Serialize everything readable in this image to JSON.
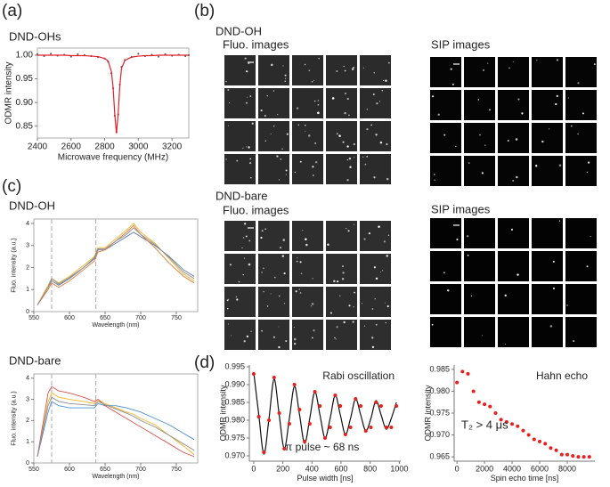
{
  "panel_labels": [
    "(a)",
    "(b)",
    "(c)",
    "(d)"
  ],
  "images": {
    "oh_title": "DND-OH",
    "oh_fluo": "Fluo. images",
    "oh_sip": "SIP images",
    "bare_title": "DND-bare",
    "bare_fluo": "Fluo. images",
    "bare_sip": "SIP images"
  },
  "chart_data": [
    {
      "type": "scatter",
      "title": "DND-OHs",
      "x_label": "Microwave frequency (MHz)",
      "y_label": "ODMR intensity",
      "x": [
        2400,
        2440,
        2480,
        2520,
        2560,
        2600,
        2640,
        2680,
        2720,
        2760,
        2800,
        2820,
        2840,
        2850,
        2860,
        2870,
        2880,
        2890,
        2900,
        2920,
        2960,
        3000,
        3040,
        3080,
        3120,
        3160,
        3200,
        3240,
        3280,
        3300
      ],
      "series": [
        {
          "mode": "markers",
          "color": "#666666",
          "values": [
            1.002,
            0.998,
            1.003,
            0.999,
            1.001,
            0.997,
            1.002,
            1.0,
            0.998,
            0.996,
            0.993,
            0.986,
            0.962,
            0.93,
            0.872,
            0.838,
            0.875,
            0.938,
            0.975,
            0.99,
            0.996,
            1.003,
            0.998,
            1.001,
            0.997,
            1.002,
            0.999,
            1.001,
            0.998,
            1.0
          ]
        },
        {
          "mode": "lines",
          "color": "#e0202a",
          "values": [
            1.0,
            1.0,
            1.0,
            1.0,
            1.0,
            0.999,
            0.999,
            0.999,
            0.998,
            0.997,
            0.993,
            0.988,
            0.965,
            0.932,
            0.875,
            0.835,
            0.876,
            0.935,
            0.972,
            0.989,
            0.996,
            0.998,
            0.999,
            0.999,
            1.0,
            1.0,
            1.0,
            1.0,
            1.0,
            1.0
          ]
        }
      ],
      "xlim": [
        2400,
        3300
      ],
      "xticks": [
        2400,
        2600,
        2800,
        3000,
        3200
      ],
      "ylim": [
        0.825,
        1.015
      ],
      "yticks": [
        0.85,
        {
          "value": 0.9,
          "label": "0.90"
        },
        0.95,
        {
          "value": 1.0,
          "label": "1.00"
        }
      ]
    },
    {
      "type": "line",
      "title": "DND-OH",
      "x_label": "Wavelength (nm)",
      "y_label": "Fluo. intensity (a.u.)",
      "x": [
        555,
        570,
        575,
        585,
        600,
        620,
        635,
        640,
        650,
        665,
        680,
        690,
        700,
        720,
        740,
        760,
        775
      ],
      "series": [
        {
          "mode": "lines",
          "color": "#f0b429",
          "values": [
            0.3,
            1.2,
            1.5,
            1.3,
            1.6,
            2.1,
            2.5,
            2.9,
            2.9,
            3.3,
            3.7,
            4.0,
            3.6,
            3.1,
            2.4,
            1.7,
            1.4
          ]
        },
        {
          "mode": "lines",
          "color": "#5b7aa8",
          "values": [
            0.3,
            1.1,
            1.4,
            1.2,
            1.5,
            2.0,
            2.4,
            2.8,
            2.8,
            3.1,
            3.4,
            3.6,
            3.4,
            3.0,
            2.5,
            1.9,
            1.6
          ]
        },
        {
          "mode": "lines",
          "color": "#e07b39",
          "values": [
            0.3,
            1.0,
            1.3,
            1.1,
            1.4,
            1.9,
            2.3,
            2.7,
            2.8,
            3.2,
            3.6,
            3.9,
            3.5,
            2.9,
            2.2,
            1.6,
            1.3
          ]
        },
        {
          "mode": "lines",
          "color": "#8c8c8c",
          "values": [
            0.3,
            1.1,
            1.5,
            1.25,
            1.55,
            2.0,
            2.45,
            2.85,
            2.85,
            3.2,
            3.5,
            3.8,
            3.5,
            3.05,
            2.45,
            1.8,
            1.5
          ]
        }
      ],
      "vlines": [
        575,
        637
      ],
      "xlim": [
        550,
        780
      ],
      "xticks": [
        550,
        600,
        650,
        700,
        750
      ],
      "ylim": [
        0,
        4.2
      ],
      "yticks": [
        0,
        1,
        2,
        3,
        4
      ]
    },
    {
      "type": "line",
      "title": "DND-bare",
      "x_label": "Wavelength (nm)",
      "y_label": "Fluo. intensity (a.u.)",
      "x": [
        555,
        570,
        575,
        585,
        600,
        620,
        635,
        640,
        650,
        665,
        680,
        690,
        700,
        720,
        740,
        760,
        775
      ],
      "series": [
        {
          "mode": "lines",
          "color": "#f0b429",
          "values": [
            0.3,
            2.9,
            3.3,
            3.1,
            3.0,
            2.9,
            2.8,
            3.0,
            2.8,
            2.6,
            2.4,
            2.3,
            2.1,
            1.8,
            1.3,
            0.8,
            0.4
          ]
        },
        {
          "mode": "lines",
          "color": "#4a8fd0",
          "values": [
            0.3,
            2.4,
            2.9,
            2.7,
            2.6,
            2.6,
            2.6,
            2.8,
            2.7,
            2.7,
            2.6,
            2.5,
            2.4,
            2.1,
            1.8,
            1.4,
            1.1
          ]
        },
        {
          "mode": "lines",
          "color": "#d9534f",
          "values": [
            0.3,
            3.3,
            3.6,
            3.4,
            3.3,
            3.1,
            2.9,
            3.0,
            2.7,
            2.4,
            2.1,
            1.9,
            1.7,
            1.3,
            0.9,
            0.5,
            0.3
          ]
        },
        {
          "mode": "lines",
          "color": "#8c8c8c",
          "values": [
            0.3,
            2.7,
            3.1,
            2.9,
            2.8,
            2.75,
            2.7,
            2.9,
            2.75,
            2.55,
            2.35,
            2.2,
            2.0,
            1.7,
            1.3,
            0.9,
            0.6
          ]
        }
      ],
      "vlines": [
        575,
        637
      ],
      "xlim": [
        550,
        780
      ],
      "xticks": [
        550,
        600,
        650,
        700,
        750
      ],
      "ylim": [
        0,
        4.2
      ],
      "yticks": [
        0,
        1,
        2,
        3,
        4
      ]
    },
    {
      "type": "scatter",
      "x_label": "Pulse width [ns]",
      "y_label": "ODMR intensity",
      "annotations": [
        "Rabi oscillation",
        "π pulse ~ 68 ns"
      ],
      "x": [
        0,
        35,
        70,
        105,
        140,
        175,
        210,
        245,
        280,
        315,
        350,
        385,
        420,
        455,
        490,
        525,
        560,
        595,
        630,
        665,
        700,
        735,
        770,
        805,
        840,
        875,
        910,
        945,
        980
      ],
      "series": [
        {
          "mode": "lines",
          "smooth": true,
          "color": "#111111",
          "values": [
            0.9935,
            0.9815,
            0.9705,
            0.9805,
            0.9915,
            0.9815,
            0.972,
            0.9805,
            0.9895,
            0.9815,
            0.9735,
            0.9805,
            0.988,
            0.9815,
            0.975,
            0.9805,
            0.987,
            0.9815,
            0.976,
            0.9805,
            0.986,
            0.9815,
            0.977,
            0.9805,
            0.9855,
            0.9815,
            0.9775,
            0.9805,
            0.985
          ]
        },
        {
          "mode": "markers",
          "color": "#e8201c",
          "values": [
            0.993,
            0.981,
            0.971,
            0.98,
            0.992,
            0.982,
            0.972,
            0.979,
            0.99,
            0.983,
            0.974,
            0.979,
            0.988,
            0.984,
            0.975,
            0.978,
            0.987,
            0.984,
            0.976,
            0.978,
            0.986,
            0.984,
            0.977,
            0.978,
            0.985,
            0.984,
            0.978,
            0.978,
            0.984
          ]
        }
      ],
      "xlim": [
        -30,
        1010
      ],
      "xticks": [
        0,
        200,
        400,
        600,
        800,
        1000
      ],
      "ylim": [
        0.9685,
        0.9955
      ],
      "yticks": [
        {
          "value": 0.97,
          "label": "0.970"
        },
        0.975,
        {
          "value": 0.98,
          "label": "0.980"
        },
        0.985,
        {
          "value": 0.99,
          "label": "0.990"
        },
        0.995
      ]
    },
    {
      "type": "scatter",
      "x_label": "Spin echo time [ns]",
      "y_label": "ODMR intensity",
      "annotations": [
        "Hahn echo",
        "T₂ > 4 μs"
      ],
      "x": [
        0,
        400,
        800,
        1200,
        1600,
        2000,
        2400,
        2800,
        3200,
        3600,
        4000,
        4400,
        4800,
        5200,
        5600,
        6000,
        6400,
        6800,
        7200,
        7600,
        8000,
        8400,
        8800,
        9200,
        9600
      ],
      "series": [
        {
          "mode": "markers",
          "color": "#e8201c",
          "values": [
            0.982,
            0.9845,
            0.984,
            0.98,
            0.9775,
            0.977,
            0.9765,
            0.975,
            0.9735,
            0.973,
            0.9725,
            0.972,
            0.971,
            0.97,
            0.969,
            0.9685,
            0.968,
            0.967,
            0.9665,
            0.9655,
            0.9655,
            0.9652,
            0.965,
            0.965,
            0.965
          ]
        }
      ],
      "xlim": [
        -200,
        10000
      ],
      "xticks": [
        0,
        2000,
        4000,
        6000,
        8000
      ],
      "ylim": [
        0.964,
        0.986
      ],
      "yticks": [
        0.965,
        {
          "value": 0.97,
          "label": "0.970"
        },
        0.975,
        {
          "value": 0.98,
          "label": "0.980"
        },
        0.985
      ]
    }
  ]
}
